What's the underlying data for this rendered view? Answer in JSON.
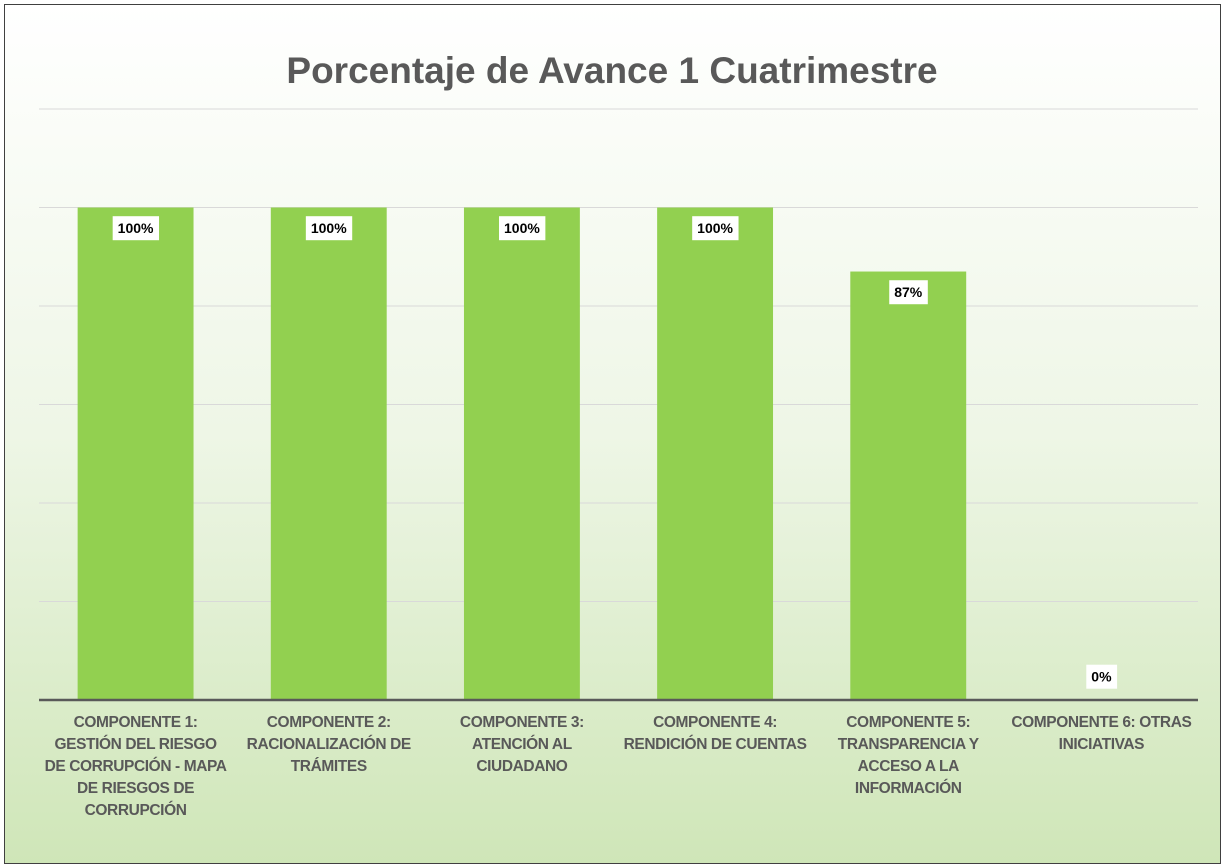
{
  "chart_data": {
    "type": "bar",
    "title": "Porcentaje de Avance 1 Cuatrimestre",
    "categories": [
      "COMPONENTE 1: GESTIÓN DEL RIESGO DE CORRUPCIÓN - MAPA DE RIESGOS DE CORRUPCIÓN",
      "COMPONENTE 2: RACIONALIZACIÓN DE TRÁMITES",
      "COMPONENTE 3: ATENCIÓN AL CIUDADANO",
      "COMPONENTE 4: RENDICIÓN DE CUENTAS",
      "COMPONENTE 5: TRANSPARENCIA Y ACCESO A LA INFORMACIÓN",
      "COMPONENTE 6: OTRAS INICIATIVAS"
    ],
    "values": [
      100,
      100,
      100,
      100,
      87,
      0
    ],
    "value_labels": [
      "100%",
      "100%",
      "100%",
      "100%",
      "87%",
      "0%"
    ],
    "color": "#92d050",
    "ylim": [
      0,
      120
    ],
    "yticks": [
      0,
      20,
      40,
      60,
      80,
      100,
      120
    ],
    "grid": true
  }
}
